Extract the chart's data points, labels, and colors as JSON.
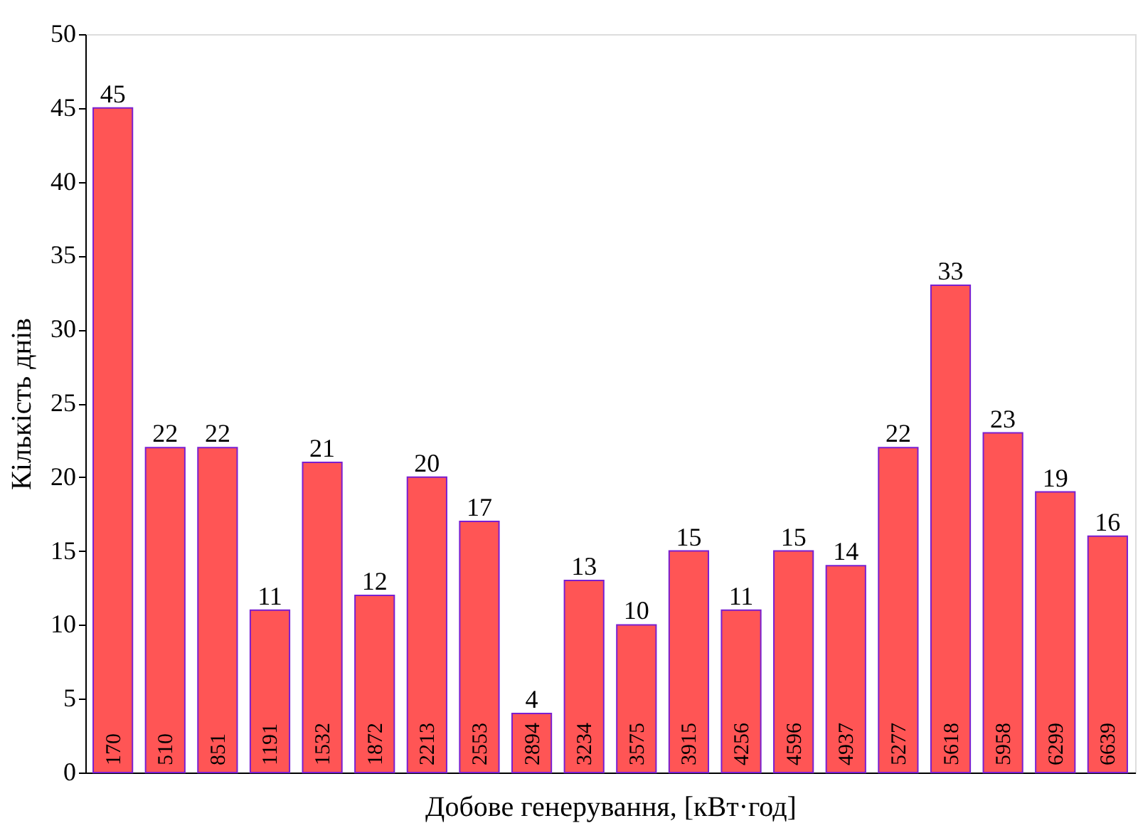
{
  "chart_data": {
    "type": "bar",
    "xlabel": "Добове генерування, [кВт·год]",
    "ylabel": "Кількість днів",
    "categories": [
      "170",
      "510",
      "851",
      "1191",
      "1532",
      "1872",
      "2213",
      "2553",
      "2894",
      "3234",
      "3575",
      "3915",
      "4256",
      "4596",
      "4937",
      "5277",
      "5618",
      "5958",
      "6299",
      "6639"
    ],
    "values": [
      45,
      22,
      22,
      11,
      21,
      12,
      20,
      17,
      4,
      13,
      10,
      15,
      11,
      15,
      14,
      22,
      33,
      23,
      19,
      16
    ],
    "color": "#ff5555",
    "ylim": [
      0,
      50
    ],
    "yticks": [
      0,
      5,
      10,
      15,
      20,
      25,
      30,
      35,
      40,
      45,
      50
    ],
    "grid": false,
    "data_labels": true
  }
}
